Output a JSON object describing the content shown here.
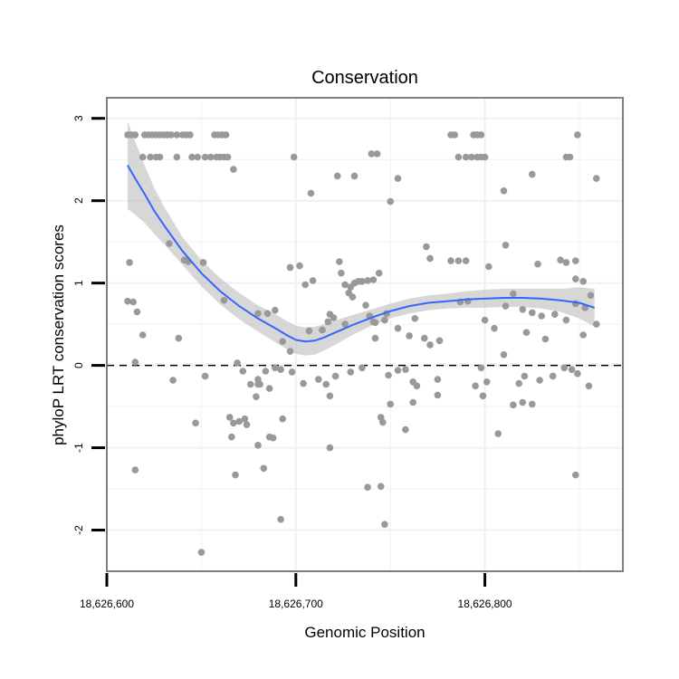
{
  "chart_data": {
    "type": "scatter",
    "title": "Conservation",
    "xlabel": "Genomic Position",
    "ylabel": "phyloP LRT conservation scores",
    "xlim": [
      18626600,
      18626873
    ],
    "ylim": [
      -2.5,
      3.25
    ],
    "x_ticks": [
      18626600,
      18626700,
      18626800
    ],
    "x_tick_labels": [
      "18,626,600",
      "18,626,700",
      "18,626,800"
    ],
    "y_ticks": [
      -2,
      -1,
      0,
      1,
      2,
      3
    ],
    "y_tick_labels": [
      "-2",
      "-1",
      "0",
      "1",
      "2",
      "3"
    ],
    "grid": true,
    "reference_line": {
      "y": 0,
      "style": "dashed"
    },
    "colors": {
      "points": "#999999",
      "smooth_line": "#3366ff",
      "ribbon": "#bdbdbd",
      "panel_border": "#7f7f7f",
      "grid": "#f0f0f0"
    },
    "points": [
      [
        18626611,
        2.8
      ],
      [
        18626613,
        2.8
      ],
      [
        18626615,
        2.8
      ],
      [
        18626620,
        2.8
      ],
      [
        18626622,
        2.8
      ],
      [
        18626624,
        2.8
      ],
      [
        18626626,
        2.8
      ],
      [
        18626628,
        2.8
      ],
      [
        18626630,
        2.8
      ],
      [
        18626632,
        2.8
      ],
      [
        18626634,
        2.8
      ],
      [
        18626637,
        2.8
      ],
      [
        18626640,
        2.8
      ],
      [
        18626642,
        2.8
      ],
      [
        18626644,
        2.8
      ],
      [
        18626657,
        2.8
      ],
      [
        18626659,
        2.8
      ],
      [
        18626661,
        2.8
      ],
      [
        18626663,
        2.8
      ],
      [
        18626782,
        2.8
      ],
      [
        18626784,
        2.8
      ],
      [
        18626794,
        2.8
      ],
      [
        18626796,
        2.8
      ],
      [
        18626798,
        2.8
      ],
      [
        18626849,
        2.8
      ],
      [
        18626619,
        2.53
      ],
      [
        18626623,
        2.53
      ],
      [
        18626626,
        2.53
      ],
      [
        18626628,
        2.53
      ],
      [
        18626637,
        2.53
      ],
      [
        18626645,
        2.53
      ],
      [
        18626648,
        2.53
      ],
      [
        18626652,
        2.53
      ],
      [
        18626655,
        2.53
      ],
      [
        18626658,
        2.53
      ],
      [
        18626660,
        2.53
      ],
      [
        18626662,
        2.53
      ],
      [
        18626664,
        2.53
      ],
      [
        18626699,
        2.53
      ],
      [
        18626786,
        2.53
      ],
      [
        18626790,
        2.53
      ],
      [
        18626793,
        2.53
      ],
      [
        18626796,
        2.53
      ],
      [
        18626798,
        2.53
      ],
      [
        18626800,
        2.53
      ],
      [
        18626843,
        2.53
      ],
      [
        18626845,
        2.53
      ],
      [
        18626740,
        2.57
      ],
      [
        18626743,
        2.57
      ],
      [
        18626667,
        2.38
      ],
      [
        18626722,
        2.3
      ],
      [
        18626731,
        2.3
      ],
      [
        18626754,
        2.27
      ],
      [
        18626825,
        2.32
      ],
      [
        18626859,
        2.27
      ],
      [
        18626708,
        2.09
      ],
      [
        18626810,
        2.12
      ],
      [
        18626750,
        1.99
      ],
      [
        18626612,
        1.25
      ],
      [
        18626633,
        1.48
      ],
      [
        18626641,
        1.28
      ],
      [
        18626643,
        1.26
      ],
      [
        18626651,
        1.25
      ],
      [
        18626611,
        0.78
      ],
      [
        18626614,
        0.77
      ],
      [
        18626616,
        0.65
      ],
      [
        18626619,
        0.37
      ],
      [
        18626638,
        0.33
      ],
      [
        18626615,
        0.04
      ],
      [
        18626635,
        -0.18
      ],
      [
        18626652,
        -0.13
      ],
      [
        18626662,
        0.79
      ],
      [
        18626697,
        1.19
      ],
      [
        18626702,
        1.21
      ],
      [
        18626709,
        1.03
      ],
      [
        18626705,
        0.98
      ],
      [
        18626717,
        0.53
      ],
      [
        18626718,
        0.62
      ],
      [
        18626720,
        0.58
      ],
      [
        18626723,
        1.26
      ],
      [
        18626724,
        1.12
      ],
      [
        18626726,
        0.98
      ],
      [
        18626728,
        0.88
      ],
      [
        18626731,
        1.0
      ],
      [
        18626733,
        1.02
      ],
      [
        18626735,
        1.02
      ],
      [
        18626738,
        1.03
      ],
      [
        18626741,
        1.04
      ],
      [
        18626744,
        1.12
      ],
      [
        18626730,
        0.83
      ],
      [
        18626737,
        0.73
      ],
      [
        18626739,
        0.6
      ],
      [
        18626741,
        0.53
      ],
      [
        18626742,
        0.52
      ],
      [
        18626747,
        0.55
      ],
      [
        18626748,
        0.63
      ],
      [
        18626729,
        0.95
      ],
      [
        18626726,
        0.5
      ],
      [
        18626714,
        0.43
      ],
      [
        18626769,
        1.44
      ],
      [
        18626771,
        1.3
      ],
      [
        18626782,
        1.27
      ],
      [
        18626786,
        1.27
      ],
      [
        18626790,
        1.27
      ],
      [
        18626802,
        1.2
      ],
      [
        18626811,
        1.46
      ],
      [
        18626828,
        1.23
      ],
      [
        18626840,
        1.28
      ],
      [
        18626843,
        1.25
      ],
      [
        18626848,
        1.27
      ],
      [
        18626852,
        1.02
      ],
      [
        18626848,
        1.05
      ],
      [
        18626680,
        0.63
      ],
      [
        18626685,
        0.63
      ],
      [
        18626693,
        0.29
      ],
      [
        18626689,
        0.67
      ],
      [
        18626697,
        0.17
      ],
      [
        18626707,
        0.42
      ],
      [
        18626714,
        0.43
      ],
      [
        18626742,
        0.33
      ],
      [
        18626754,
        0.45
      ],
      [
        18626760,
        0.36
      ],
      [
        18626763,
        0.57
      ],
      [
        18626768,
        0.33
      ],
      [
        18626771,
        0.25
      ],
      [
        18626776,
        0.3
      ],
      [
        18626787,
        0.77
      ],
      [
        18626791,
        0.78
      ],
      [
        18626800,
        0.55
      ],
      [
        18626805,
        0.45
      ],
      [
        18626811,
        0.72
      ],
      [
        18626815,
        0.87
      ],
      [
        18626820,
        0.68
      ],
      [
        18626825,
        0.64
      ],
      [
        18626830,
        0.6
      ],
      [
        18626837,
        0.62
      ],
      [
        18626843,
        0.55
      ],
      [
        18626848,
        0.75
      ],
      [
        18626853,
        0.7
      ],
      [
        18626856,
        0.85
      ],
      [
        18626859,
        0.5
      ],
      [
        18626822,
        0.4
      ],
      [
        18626832,
        0.32
      ],
      [
        18626852,
        0.37
      ],
      [
        18626669,
        0.03
      ],
      [
        18626672,
        -0.07
      ],
      [
        18626684,
        -0.07
      ],
      [
        18626689,
        -0.03
      ],
      [
        18626692,
        -0.05
      ],
      [
        18626698,
        -0.08
      ],
      [
        18626704,
        -0.22
      ],
      [
        18626712,
        -0.17
      ],
      [
        18626716,
        -0.23
      ],
      [
        18626721,
        -0.13
      ],
      [
        18626729,
        -0.08
      ],
      [
        18626735,
        -0.03
      ],
      [
        18626749,
        -0.12
      ],
      [
        18626754,
        -0.06
      ],
      [
        18626758,
        -0.05
      ],
      [
        18626762,
        -0.2
      ],
      [
        18626764,
        -0.25
      ],
      [
        18626775,
        -0.17
      ],
      [
        18626798,
        -0.03
      ],
      [
        18626801,
        -0.2
      ],
      [
        18626810,
        0.13
      ],
      [
        18626818,
        -0.22
      ],
      [
        18626821,
        -0.13
      ],
      [
        18626825,
        -0.47
      ],
      [
        18626829,
        -0.18
      ],
      [
        18626836,
        -0.13
      ],
      [
        18626842,
        -0.03
      ],
      [
        18626846,
        -0.05
      ],
      [
        18626849,
        -0.1
      ],
      [
        18626855,
        -0.25
      ],
      [
        18626676,
        -0.23
      ],
      [
        18626680,
        -0.23
      ],
      [
        18626679,
        -0.38
      ],
      [
        18626681,
        -0.23
      ],
      [
        18626686,
        -0.28
      ],
      [
        18626680,
        -0.17
      ],
      [
        18626718,
        -0.37
      ],
      [
        18626750,
        -0.47
      ],
      [
        18626762,
        -0.45
      ],
      [
        18626775,
        -0.36
      ],
      [
        18626795,
        -0.25
      ],
      [
        18626799,
        -0.37
      ],
      [
        18626815,
        -0.48
      ],
      [
        18626820,
        -0.45
      ],
      [
        18626647,
        -0.7
      ],
      [
        18626665,
        -0.63
      ],
      [
        18626667,
        -0.7
      ],
      [
        18626670,
        -0.68
      ],
      [
        18626673,
        -0.65
      ],
      [
        18626674,
        -0.72
      ],
      [
        18626666,
        -0.87
      ],
      [
        18626686,
        -0.87
      ],
      [
        18626688,
        -0.88
      ],
      [
        18626693,
        -0.65
      ],
      [
        18626718,
        -1.0
      ],
      [
        18626745,
        -0.63
      ],
      [
        18626746,
        -0.69
      ],
      [
        18626758,
        -0.78
      ],
      [
        18626807,
        -0.83
      ],
      [
        18626680,
        -0.97
      ],
      [
        18626615,
        -1.27
      ],
      [
        18626668,
        -1.33
      ],
      [
        18626683,
        -1.25
      ],
      [
        18626738,
        -1.48
      ],
      [
        18626745,
        -1.47
      ],
      [
        18626848,
        -1.33
      ],
      [
        18626692,
        -1.87
      ],
      [
        18626747,
        -1.93
      ],
      [
        18626650,
        -2.27
      ]
    ],
    "smooth_line": {
      "x": [
        18626611,
        18626615,
        18626620,
        18626625,
        18626630,
        18626640,
        18626650,
        18626660,
        18626670,
        18626680,
        18626690,
        18626695,
        18626700,
        18626705,
        18626710,
        18626715,
        18626720,
        18626730,
        18626740,
        18626750,
        18626760,
        18626770,
        18626780,
        18626790,
        18626800,
        18626810,
        18626820,
        18626830,
        18626840,
        18626850,
        18626858
      ],
      "y": [
        2.43,
        2.27,
        2.08,
        1.88,
        1.71,
        1.39,
        1.12,
        0.9,
        0.72,
        0.57,
        0.44,
        0.37,
        0.31,
        0.29,
        0.3,
        0.34,
        0.39,
        0.49,
        0.58,
        0.66,
        0.72,
        0.76,
        0.78,
        0.8,
        0.81,
        0.82,
        0.82,
        0.81,
        0.79,
        0.76,
        0.7
      ]
    },
    "confidence_band": {
      "x": [
        18626611,
        18626615,
        18626620,
        18626625,
        18626630,
        18626640,
        18626650,
        18626660,
        18626670,
        18626680,
        18626690,
        18626695,
        18626700,
        18626705,
        18626710,
        18626715,
        18626720,
        18626730,
        18626740,
        18626750,
        18626760,
        18626770,
        18626780,
        18626790,
        18626800,
        18626810,
        18626820,
        18626830,
        18626840,
        18626850,
        18626858
      ],
      "lower": [
        1.9,
        1.83,
        1.73,
        1.6,
        1.48,
        1.22,
        0.96,
        0.74,
        0.56,
        0.41,
        0.27,
        0.2,
        0.14,
        0.12,
        0.13,
        0.18,
        0.24,
        0.37,
        0.48,
        0.57,
        0.63,
        0.67,
        0.69,
        0.7,
        0.7,
        0.71,
        0.71,
        0.69,
        0.65,
        0.57,
        0.47
      ],
      "upper": [
        2.96,
        2.72,
        2.43,
        2.16,
        1.94,
        1.56,
        1.28,
        1.06,
        0.88,
        0.73,
        0.61,
        0.54,
        0.48,
        0.46,
        0.47,
        0.5,
        0.54,
        0.61,
        0.68,
        0.75,
        0.81,
        0.85,
        0.87,
        0.9,
        0.92,
        0.93,
        0.93,
        0.93,
        0.93,
        0.95,
        0.93
      ]
    }
  }
}
